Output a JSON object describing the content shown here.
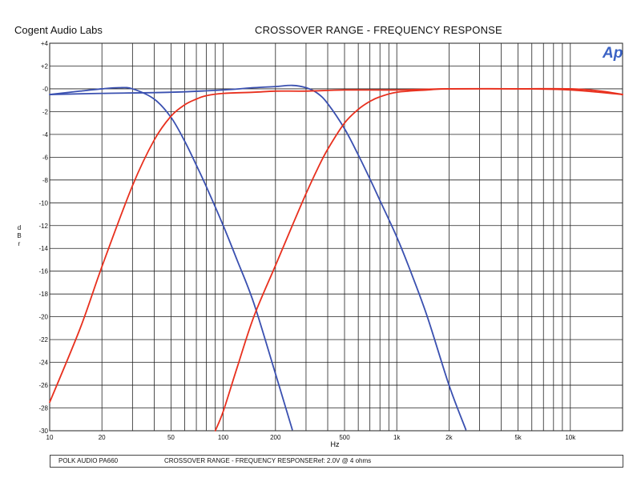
{
  "header": {
    "company": "Cogent Audio Labs",
    "title": "CROSSOVER RANGE  -  FREQUENCY RESPONSE",
    "logo": "Ap"
  },
  "footer": {
    "device": "POLK AUDIO PA660",
    "title": "CROSSOVER RANGE  -  FREQUENCY RESPONSE",
    "reference": "Ref: 2.0V @ 4 ohms"
  },
  "colors": {
    "blue_series": "#3a50b0",
    "red_series": "#e8301e",
    "grid": "#222222",
    "logo": "#3b62c4"
  },
  "chart_data": {
    "type": "line",
    "title": "CROSSOVER RANGE  -  FREQUENCY RESPONSE",
    "xlabel": "Hz",
    "ylabel": "dBr",
    "x_scale": "log",
    "xlim": [
      10,
      20000
    ],
    "ylim": [
      -30,
      4
    ],
    "grid": true,
    "x_ticks": [
      10,
      20,
      50,
      100,
      200,
      500,
      1000,
      2000,
      5000,
      10000
    ],
    "x_tick_labels": [
      "10",
      "20",
      "50",
      "100",
      "200",
      "500",
      "1k",
      "2k",
      "5k",
      "10k"
    ],
    "y_ticks": [
      4,
      2,
      0,
      -2,
      -4,
      -6,
      -8,
      -10,
      -12,
      -14,
      -16,
      -18,
      -20,
      -22,
      -24,
      -26,
      -28,
      -30
    ],
    "y_tick_labels": [
      "+4",
      "+2",
      "-0",
      "-2",
      "-4",
      "-6",
      "-8",
      "-10",
      "-12",
      "-14",
      "-16",
      "-18",
      "-20",
      "-22",
      "-24",
      "-26",
      "-28",
      "-30"
    ],
    "series": [
      {
        "color": "blue",
        "x": [
          10,
          15,
          20,
          25,
          30,
          40,
          50,
          60,
          70,
          80,
          100,
          120,
          150,
          200,
          250
        ],
        "y": [
          -0.5,
          -0.2,
          0,
          0.1,
          0,
          -0.9,
          -2.5,
          -4.6,
          -6.7,
          -8.6,
          -12,
          -15,
          -18.8,
          -25,
          -29.9
        ]
      },
      {
        "color": "blue",
        "x": [
          10,
          20,
          50,
          100,
          150,
          200,
          250,
          300,
          350,
          400,
          500,
          600,
          700,
          800,
          1000,
          1200,
          1500,
          2000,
          2500
        ],
        "y": [
          -0.5,
          -0.4,
          -0.3,
          -0.1,
          0.1,
          0.2,
          0.3,
          0.1,
          -0.4,
          -1.3,
          -3.5,
          -5.8,
          -7.9,
          -9.8,
          -13,
          -16,
          -20,
          -26,
          -29.9
        ]
      },
      {
        "color": "red",
        "x": [
          10,
          15,
          20,
          30,
          40,
          50,
          60,
          70,
          80,
          100,
          150,
          200,
          300,
          500,
          1000,
          2000,
          5000,
          10000,
          15000,
          20000
        ],
        "y": [
          -27.5,
          -21,
          -15.6,
          -8.5,
          -4.5,
          -2.4,
          -1.4,
          -0.9,
          -0.6,
          -0.4,
          -0.3,
          -0.2,
          -0.2,
          -0.1,
          -0.1,
          0,
          0,
          0,
          -0.2,
          -0.5
        ]
      },
      {
        "color": "red",
        "x": [
          90,
          100,
          120,
          150,
          200,
          250,
          300,
          350,
          400,
          500,
          600,
          700,
          800,
          1000,
          1500,
          2000,
          5000,
          10000,
          20000
        ],
        "y": [
          -30,
          -28.3,
          -24.5,
          -20,
          -15.5,
          -12,
          -9.2,
          -7,
          -5.3,
          -3,
          -1.8,
          -1.1,
          -0.7,
          -0.3,
          -0.1,
          0,
          0,
          -0.1,
          -0.5
        ]
      }
    ]
  }
}
